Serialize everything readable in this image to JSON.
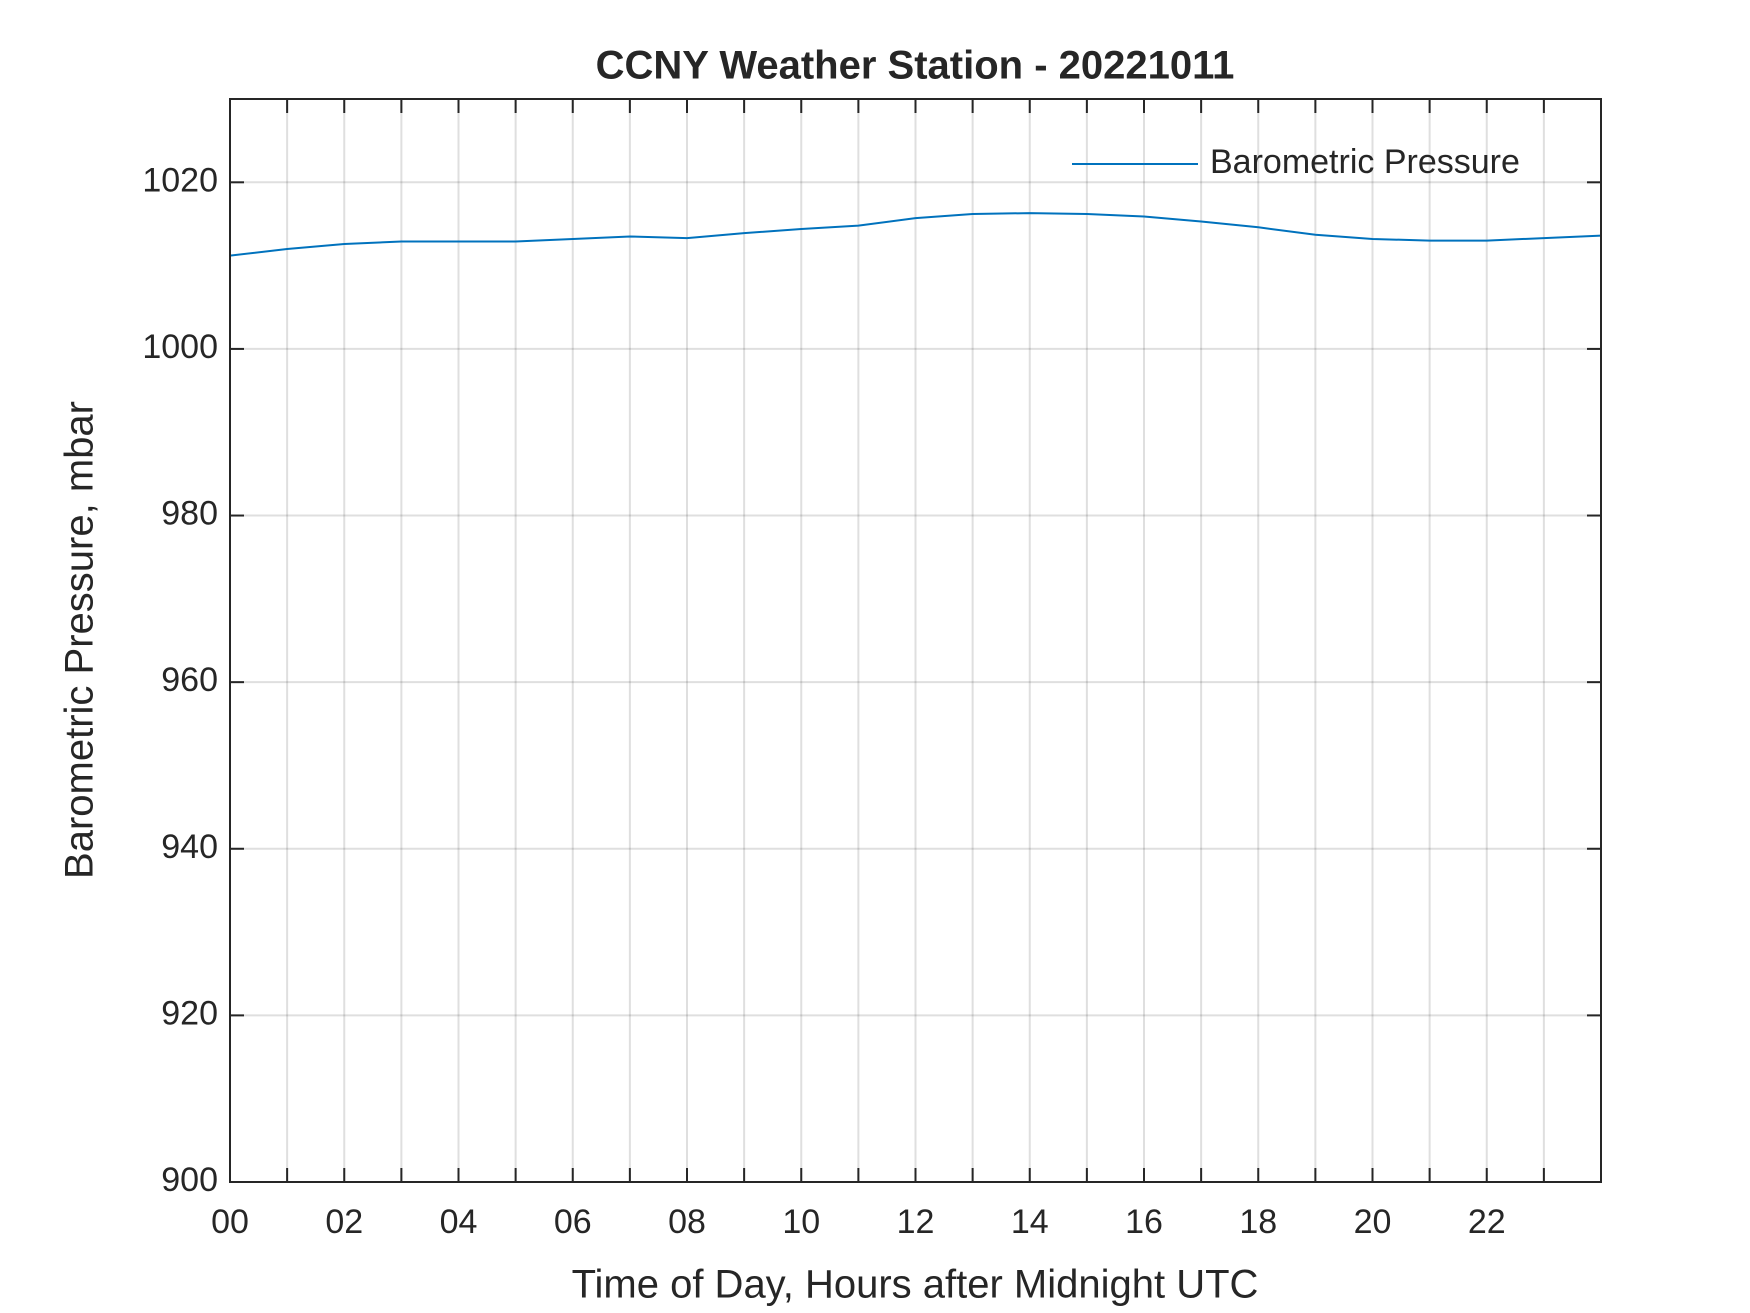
{
  "chart_data": {
    "type": "line",
    "title": "CCNY Weather Station - 20221011",
    "xlabel": "Time of Day, Hours after Midnight UTC",
    "ylabel": "Barometric Pressure, mbar",
    "x": [
      0,
      1,
      2,
      3,
      4,
      5,
      6,
      7,
      8,
      9,
      10,
      11,
      12,
      13,
      14,
      15,
      16,
      17,
      18,
      19,
      20,
      21,
      22,
      23,
      24
    ],
    "series": [
      {
        "name": "Barometric Pressure",
        "color": "#0072bd",
        "values": [
          1011.2,
          1012.0,
          1012.6,
          1012.9,
          1012.9,
          1012.9,
          1013.2,
          1013.5,
          1013.3,
          1013.9,
          1014.4,
          1014.8,
          1015.7,
          1016.2,
          1016.3,
          1016.2,
          1015.9,
          1015.3,
          1014.6,
          1013.7,
          1013.2,
          1013.0,
          1013.0,
          1013.3,
          1013.6
        ]
      }
    ],
    "xlim": [
      0,
      24
    ],
    "xticks": [
      {
        "value": 0,
        "label": "00"
      },
      {
        "value": 2,
        "label": "02"
      },
      {
        "value": 4,
        "label": "04"
      },
      {
        "value": 6,
        "label": "06"
      },
      {
        "value": 8,
        "label": "08"
      },
      {
        "value": 10,
        "label": "10"
      },
      {
        "value": 12,
        "label": "12"
      },
      {
        "value": 14,
        "label": "14"
      },
      {
        "value": 16,
        "label": "16"
      },
      {
        "value": 18,
        "label": "18"
      },
      {
        "value": 20,
        "label": "20"
      },
      {
        "value": 22,
        "label": "22"
      }
    ],
    "xminorticks": [
      1,
      3,
      5,
      7,
      9,
      11,
      13,
      15,
      17,
      19,
      21,
      23
    ],
    "ylim": [
      900,
      1030
    ],
    "yticks": [
      900,
      920,
      940,
      960,
      980,
      1000,
      1020
    ],
    "grid": true,
    "legend": "upper right"
  }
}
